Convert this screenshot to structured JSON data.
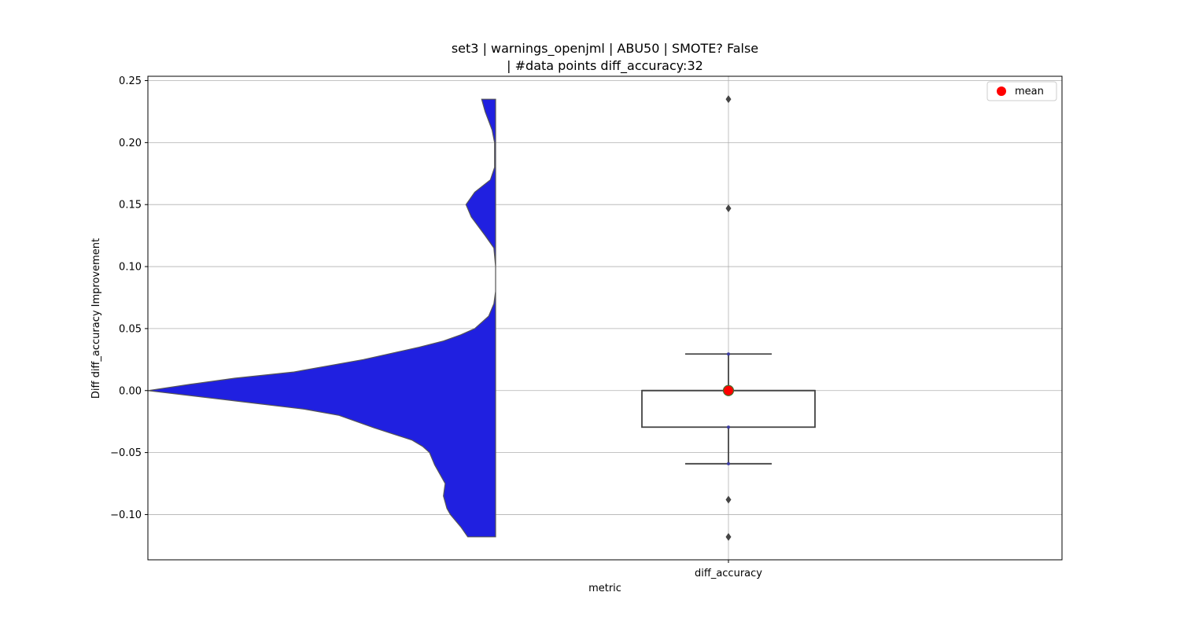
{
  "chart_data": {
    "type": "violin+box",
    "title_line1": "set3 | warnings_openjml | ABU50 | SMOTE? False",
    "title_line2": "| #data points diff_accuracy:32",
    "xlabel": "metric",
    "ylabel": "Diff diff_accuracy Improvement",
    "categories": [
      "diff_accuracy"
    ],
    "ylim": [
      -0.1365,
      0.2535
    ],
    "yticks": [
      -0.1,
      -0.05,
      0.0,
      0.05,
      0.1,
      0.15,
      0.2,
      0.25
    ],
    "ytick_labels": [
      "−0.10",
      "−0.05",
      "0.00",
      "0.05",
      "0.10",
      "0.15",
      "0.20",
      "0.25"
    ],
    "grid": true,
    "legend": {
      "placement": "top-right",
      "entries": [
        {
          "label": "mean",
          "color": "#ff0000",
          "marker": "circle"
        }
      ]
    },
    "violin": {
      "color": "#2020e0",
      "edge_color": "#555555",
      "ymin": -0.118,
      "ymax": 0.235,
      "density_profile": [
        [
          -0.118,
          0.08
        ],
        [
          -0.11,
          0.1
        ],
        [
          -0.1,
          0.13
        ],
        [
          -0.095,
          0.14
        ],
        [
          -0.09,
          0.145
        ],
        [
          -0.085,
          0.15
        ],
        [
          -0.075,
          0.145
        ],
        [
          -0.065,
          0.165
        ],
        [
          -0.06,
          0.175
        ],
        [
          -0.05,
          0.19
        ],
        [
          -0.045,
          0.21
        ],
        [
          -0.04,
          0.24
        ],
        [
          -0.03,
          0.35
        ],
        [
          -0.02,
          0.45
        ],
        [
          -0.015,
          0.55
        ],
        [
          -0.01,
          0.7
        ],
        [
          -0.005,
          0.85
        ],
        [
          0.0,
          1.0
        ],
        [
          0.005,
          0.88
        ],
        [
          0.01,
          0.75
        ],
        [
          0.015,
          0.58
        ],
        [
          0.02,
          0.48
        ],
        [
          0.025,
          0.38
        ],
        [
          0.03,
          0.3
        ],
        [
          0.035,
          0.22
        ],
        [
          0.04,
          0.15
        ],
        [
          0.045,
          0.1
        ],
        [
          0.05,
          0.06
        ],
        [
          0.06,
          0.02
        ],
        [
          0.07,
          0.005
        ],
        [
          0.08,
          0.0
        ],
        [
          0.1,
          0.0
        ],
        [
          0.115,
          0.005
        ],
        [
          0.125,
          0.03
        ],
        [
          0.14,
          0.07
        ],
        [
          0.15,
          0.085
        ],
        [
          0.16,
          0.06
        ],
        [
          0.17,
          0.015
        ],
        [
          0.18,
          0.003
        ],
        [
          0.2,
          0.003
        ],
        [
          0.21,
          0.01
        ],
        [
          0.225,
          0.03
        ],
        [
          0.235,
          0.04
        ]
      ]
    },
    "box": {
      "q1": -0.0295,
      "median": 0.0,
      "q3": 0.0,
      "whisker_low": -0.059,
      "whisker_high": 0.0295,
      "mean": 0.0,
      "fliers": [
        0.235,
        0.147,
        -0.088,
        -0.118
      ],
      "strip_points": [
        0.0295,
        0.0,
        0.0,
        0.0,
        -0.0295,
        -0.059
      ]
    }
  }
}
